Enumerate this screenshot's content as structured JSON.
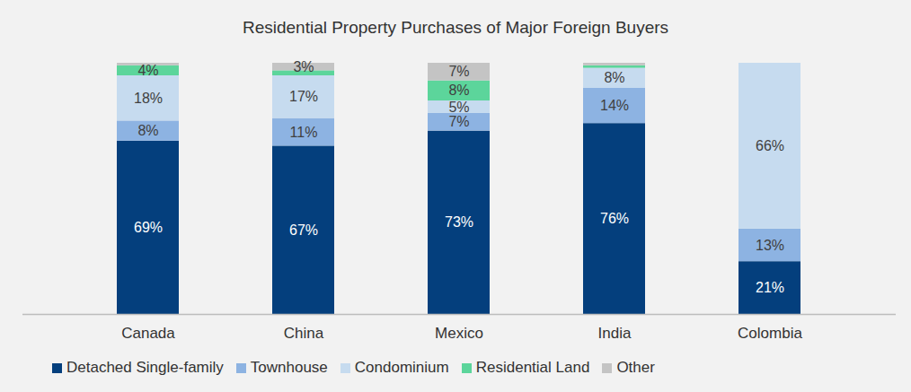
{
  "chart_data": {
    "type": "bar",
    "stacked": true,
    "data_labels": true,
    "tick_labels": "x",
    "legend": "bottom",
    "title": "Residential Property Purchases of Major Foreign Buyers",
    "categories": [
      "Canada",
      "China",
      "Mexico",
      "India",
      "Colombia"
    ],
    "ylim": [
      0,
      100
    ],
    "series": [
      {
        "name": "Detached Single-family",
        "color": "#043f7d",
        "values": [
          69,
          67,
          73,
          76,
          21
        ],
        "value_labels": [
          "69%",
          "67%",
          "73%",
          "76%",
          "21%"
        ]
      },
      {
        "name": "Townhouse",
        "color": "#8db3e2",
        "values": [
          8,
          11,
          7,
          14,
          13
        ],
        "value_labels": [
          "8%",
          "11%",
          "7%",
          "14%",
          "13%"
        ]
      },
      {
        "name": "Condominium",
        "color": "#c6dbef",
        "values": [
          18,
          17,
          5,
          8,
          66
        ],
        "value_labels": [
          "18%",
          "17%",
          "5%",
          "8%",
          "66%"
        ]
      },
      {
        "name": "Residential Land",
        "color": "#5cd59b",
        "values": [
          4,
          2,
          8,
          1,
          0
        ],
        "value_labels": [
          "4%",
          null,
          "8%",
          null,
          null
        ]
      },
      {
        "name": "Other",
        "color": "#c4c4c4",
        "values": [
          1,
          3,
          7,
          1,
          0
        ],
        "value_labels": [
          null,
          "3%",
          "7%",
          null,
          null
        ]
      }
    ]
  }
}
